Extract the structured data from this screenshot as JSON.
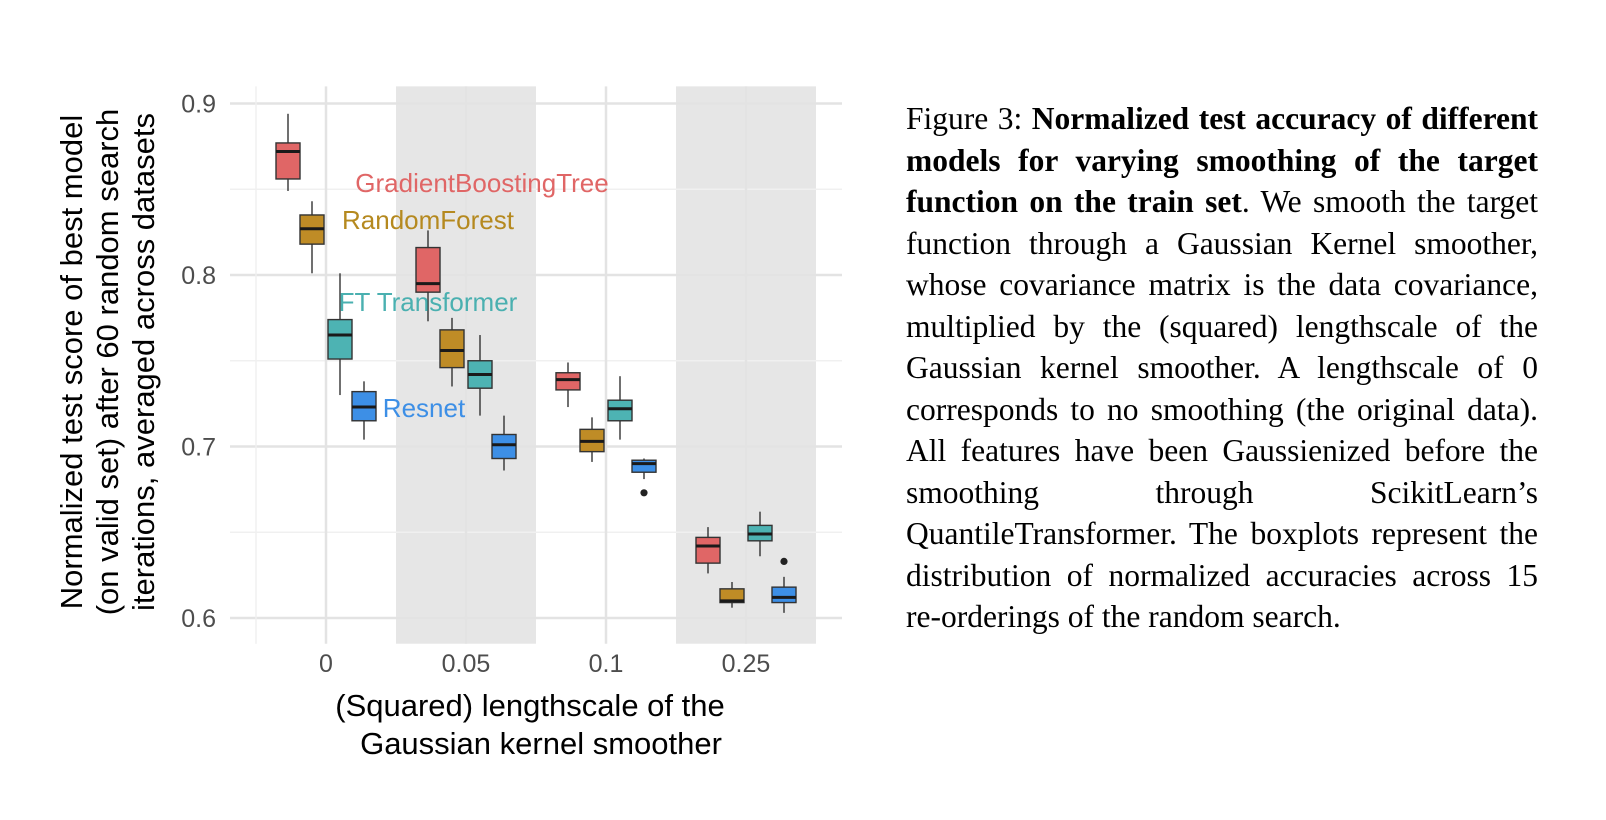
{
  "chart_data": {
    "type": "boxplot",
    "xlabel": "(Squared) lengthscale of the Gaussian kernel smoother",
    "xlabel_lines": [
      "(Squared) lengthscale of the",
      "Gaussian kernel smoother"
    ],
    "ylabel_lines": [
      "Normalized test score of best model",
      "(on valid set) after 60 random search",
      "iterations, averaged across datasets"
    ],
    "categories": [
      "0",
      "0.05",
      "0.1",
      "0.25"
    ],
    "ylim": [
      0.585,
      0.91
    ],
    "yticks": [
      0.6,
      0.7,
      0.8,
      0.9
    ],
    "ytick_labels": [
      "0.6",
      "0.7",
      "0.8",
      "0.9"
    ],
    "grid": true,
    "shaded_categories": [
      "0.05",
      "0.25"
    ],
    "series": [
      {
        "name": "GradientBoostingTree",
        "color": "#e06666",
        "label_color": "#e06666",
        "boxes": [
          {
            "category": "0",
            "whisker_low": 0.849,
            "q1": 0.856,
            "median": 0.872,
            "q3": 0.877,
            "whisker_high": 0.894,
            "outliers": []
          },
          {
            "category": "0.05",
            "whisker_low": 0.773,
            "q1": 0.79,
            "median": 0.795,
            "q3": 0.816,
            "whisker_high": 0.826,
            "outliers": []
          },
          {
            "category": "0.1",
            "whisker_low": 0.723,
            "q1": 0.733,
            "median": 0.739,
            "q3": 0.743,
            "whisker_high": 0.749,
            "outliers": []
          },
          {
            "category": "0.25",
            "whisker_low": 0.626,
            "q1": 0.632,
            "median": 0.642,
            "q3": 0.647,
            "whisker_high": 0.653,
            "outliers": []
          }
        ]
      },
      {
        "name": "RandomForest",
        "color": "#bf8c26",
        "label_color": "#b5891f",
        "boxes": [
          {
            "category": "0",
            "whisker_low": 0.801,
            "q1": 0.818,
            "median": 0.827,
            "q3": 0.835,
            "whisker_high": 0.843,
            "outliers": []
          },
          {
            "category": "0.05",
            "whisker_low": 0.735,
            "q1": 0.746,
            "median": 0.756,
            "q3": 0.768,
            "whisker_high": 0.775,
            "outliers": []
          },
          {
            "category": "0.1",
            "whisker_low": 0.691,
            "q1": 0.697,
            "median": 0.703,
            "q3": 0.71,
            "whisker_high": 0.717,
            "outliers": []
          },
          {
            "category": "0.25",
            "whisker_low": 0.606,
            "q1": 0.609,
            "median": 0.61,
            "q3": 0.617,
            "whisker_high": 0.621,
            "outliers": []
          }
        ]
      },
      {
        "name": "FT Transformer",
        "color": "#4db3b3",
        "label_color": "#4ab0b0",
        "boxes": [
          {
            "category": "0",
            "whisker_low": 0.73,
            "q1": 0.751,
            "median": 0.765,
            "q3": 0.774,
            "whisker_high": 0.801,
            "outliers": []
          },
          {
            "category": "0.05",
            "whisker_low": 0.718,
            "q1": 0.734,
            "median": 0.742,
            "q3": 0.75,
            "whisker_high": 0.765,
            "outliers": []
          },
          {
            "category": "0.1",
            "whisker_low": 0.704,
            "q1": 0.715,
            "median": 0.722,
            "q3": 0.727,
            "whisker_high": 0.741,
            "outliers": []
          },
          {
            "category": "0.25",
            "whisker_low": 0.636,
            "q1": 0.645,
            "median": 0.649,
            "q3": 0.654,
            "whisker_high": 0.662,
            "outliers": []
          }
        ]
      },
      {
        "name": "Resnet",
        "color": "#3d8fe6",
        "label_color": "#3d8fe6",
        "boxes": [
          {
            "category": "0",
            "whisker_low": 0.704,
            "q1": 0.715,
            "median": 0.723,
            "q3": 0.732,
            "whisker_high": 0.738,
            "outliers": []
          },
          {
            "category": "0.05",
            "whisker_low": 0.686,
            "q1": 0.693,
            "median": 0.701,
            "q3": 0.707,
            "whisker_high": 0.718,
            "outliers": []
          },
          {
            "category": "0.1",
            "whisker_low": 0.681,
            "q1": 0.685,
            "median": 0.69,
            "q3": 0.692,
            "whisker_high": 0.693,
            "outliers": [
              0.673
            ]
          },
          {
            "category": "0.25",
            "whisker_low": 0.603,
            "q1": 0.609,
            "median": 0.612,
            "q3": 0.618,
            "whisker_high": 0.624,
            "outliers": [
              0.633
            ]
          }
        ]
      }
    ],
    "series_labels": [
      {
        "series": "GradientBoostingTree",
        "text": "GradientBoostingTree"
      },
      {
        "series": "RandomForest",
        "text": "RandomForest"
      },
      {
        "series": "FT Transformer",
        "text": "FT Transformer"
      },
      {
        "series": "Resnet",
        "text": "Resnet"
      }
    ]
  },
  "caption": {
    "prefix": "Figure 3: ",
    "bold": "Normalized test accuracy of different models for varying smoothing of the target function on the train set",
    "period": ".",
    "body": " We smooth the target function through a Gaussian Kernel smoother, whose covari­ance matrix is the data covariance, multi­plied by the (squared) lengthscale of the Gaussian kernel smoother. A lengthscale of 0 corresponds to no smoothing (the orig­inal data). All features have been Gaussi­enized before the smoothing through Scik­itLearn’s QuantileTransformer. The box­plots represent the distribution of normal­ized accuracies across 15 re-orderings of the random search."
  }
}
